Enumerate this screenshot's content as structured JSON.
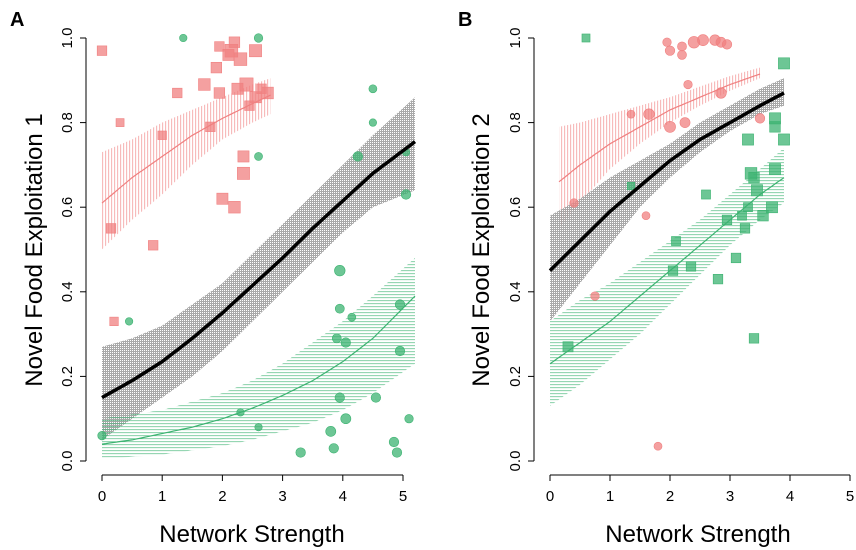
{
  "chart_data": [
    {
      "type": "scatter",
      "panel_label": "A",
      "xlabel": "Network Strength",
      "ylabel": "Novel Food Exploitation 1",
      "xlim": [
        0,
        5.2
      ],
      "ylim": [
        0,
        1
      ],
      "xticks": [
        "0",
        "1",
        "2",
        "3",
        "4",
        "5"
      ],
      "yticks": [
        "0.0",
        "0.2",
        "0.4",
        "0.6",
        "0.8",
        "1.0"
      ],
      "grid": false,
      "legend": "none",
      "colors": {
        "red": "#f08080",
        "green": "#3cb371",
        "black": "#000000",
        "ci_grey": "#808080"
      },
      "series": [
        {
          "color": "red",
          "curve": {
            "x": [
              0,
              0.5,
              1,
              1.5,
              2,
              2.5,
              2.8
            ],
            "y": [
              0.61,
              0.67,
              0.72,
              0.77,
              0.81,
              0.845,
              0.865
            ]
          },
          "ci_lower": [
            0.5,
            0.57,
            0.63,
            0.7,
            0.76,
            0.8,
            0.82
          ],
          "ci_upper": [
            0.73,
            0.76,
            0.8,
            0.83,
            0.86,
            0.89,
            0.905
          ],
          "points": [
            {
              "x": 0,
              "y": 0.97,
              "s": 1
            },
            {
              "x": 0.15,
              "y": 0.55,
              "s": 1
            },
            {
              "x": 0.2,
              "y": 0.33,
              "s": 0.8
            },
            {
              "x": 0.3,
              "y": 0.8,
              "s": 0.7
            },
            {
              "x": 0.85,
              "y": 0.51,
              "s": 1
            },
            {
              "x": 1.0,
              "y": 0.77,
              "s": 0.8
            },
            {
              "x": 1.25,
              "y": 0.87,
              "s": 1
            },
            {
              "x": 1.7,
              "y": 0.89,
              "s": 1.4
            },
            {
              "x": 1.8,
              "y": 0.79,
              "s": 1
            },
            {
              "x": 1.9,
              "y": 0.93,
              "s": 1.2
            },
            {
              "x": 1.95,
              "y": 0.87,
              "s": 1.2
            },
            {
              "x": 1.95,
              "y": 0.98,
              "s": 1
            },
            {
              "x": 2.0,
              "y": 0.62,
              "s": 1.3
            },
            {
              "x": 2.1,
              "y": 0.96,
              "s": 1.3
            },
            {
              "x": 2.15,
              "y": 0.97,
              "s": 1.6
            },
            {
              "x": 2.2,
              "y": 0.99,
              "s": 1.2
            },
            {
              "x": 2.2,
              "y": 0.6,
              "s": 1.4
            },
            {
              "x": 2.25,
              "y": 0.88,
              "s": 1.3
            },
            {
              "x": 2.3,
              "y": 0.95,
              "s": 1.6
            },
            {
              "x": 2.35,
              "y": 0.72,
              "s": 1.3
            },
            {
              "x": 2.35,
              "y": 0.68,
              "s": 1.5
            },
            {
              "x": 2.4,
              "y": 0.89,
              "s": 1.7
            },
            {
              "x": 2.45,
              "y": 0.84,
              "s": 1
            },
            {
              "x": 2.55,
              "y": 0.97,
              "s": 1.5
            },
            {
              "x": 2.55,
              "y": 0.86,
              "s": 1.3
            },
            {
              "x": 2.65,
              "y": 0.88,
              "s": 1
            },
            {
              "x": 2.75,
              "y": 0.87,
              "s": 1.4
            }
          ]
        },
        {
          "color": "black",
          "curve": {
            "x": [
              0,
              0.5,
              1,
              1.5,
              2,
              2.5,
              3,
              3.5,
              4,
              4.5,
              5.2
            ],
            "y": [
              0.15,
              0.19,
              0.235,
              0.29,
              0.35,
              0.415,
              0.48,
              0.55,
              0.615,
              0.68,
              0.755
            ]
          },
          "ci_lower": [
            0.05,
            0.1,
            0.15,
            0.2,
            0.26,
            0.33,
            0.4,
            0.47,
            0.54,
            0.6,
            0.64
          ],
          "ci_upper": [
            0.27,
            0.29,
            0.32,
            0.37,
            0.42,
            0.49,
            0.56,
            0.63,
            0.7,
            0.77,
            0.86
          ]
        },
        {
          "color": "green",
          "curve": {
            "x": [
              0,
              0.5,
              1,
              1.5,
              2,
              2.5,
              3,
              3.5,
              4,
              4.5,
              5.2
            ],
            "y": [
              0.04,
              0.05,
              0.065,
              0.08,
              0.1,
              0.125,
              0.155,
              0.19,
              0.235,
              0.29,
              0.39
            ]
          },
          "ci_lower": [
            0.005,
            0.01,
            0.015,
            0.025,
            0.035,
            0.05,
            0.07,
            0.09,
            0.12,
            0.16,
            0.23
          ],
          "ci_upper": [
            0.1,
            0.11,
            0.12,
            0.14,
            0.16,
            0.19,
            0.23,
            0.28,
            0.33,
            0.39,
            0.48
          ],
          "points": [
            {
              "x": 0,
              "y": 0.06,
              "s": 0.8
            },
            {
              "x": 0.45,
              "y": 0.33,
              "s": 0.6
            },
            {
              "x": 1.35,
              "y": 1.0,
              "s": 0.6
            },
            {
              "x": 2.3,
              "y": 0.115,
              "s": 0.6
            },
            {
              "x": 2.6,
              "y": 0.08,
              "s": 0.6
            },
            {
              "x": 2.6,
              "y": 1.0,
              "s": 0.8
            },
            {
              "x": 2.6,
              "y": 0.72,
              "s": 0.7
            },
            {
              "x": 3.3,
              "y": 0.02,
              "s": 1
            },
            {
              "x": 3.8,
              "y": 0.07,
              "s": 1.1
            },
            {
              "x": 3.85,
              "y": 0.03,
              "s": 1
            },
            {
              "x": 3.9,
              "y": 0.29,
              "s": 0.9
            },
            {
              "x": 3.95,
              "y": 0.15,
              "s": 1
            },
            {
              "x": 3.95,
              "y": 0.36,
              "s": 0.9
            },
            {
              "x": 3.95,
              "y": 0.45,
              "s": 1.2
            },
            {
              "x": 4.05,
              "y": 0.28,
              "s": 1
            },
            {
              "x": 4.05,
              "y": 0.1,
              "s": 1.1
            },
            {
              "x": 4.15,
              "y": 0.34,
              "s": 0.7
            },
            {
              "x": 4.25,
              "y": 0.72,
              "s": 1
            },
            {
              "x": 4.5,
              "y": 0.88,
              "s": 0.7
            },
            {
              "x": 4.5,
              "y": 0.8,
              "s": 0.6
            },
            {
              "x": 4.55,
              "y": 0.15,
              "s": 1
            },
            {
              "x": 4.85,
              "y": 0.045,
              "s": 1
            },
            {
              "x": 4.9,
              "y": 0.02,
              "s": 1
            },
            {
              "x": 4.95,
              "y": 0.37,
              "s": 1
            },
            {
              "x": 4.95,
              "y": 0.26,
              "s": 1
            },
            {
              "x": 5.05,
              "y": 0.63,
              "s": 1
            },
            {
              "x": 5.1,
              "y": 0.1,
              "s": 0.8
            },
            {
              "x": 5.05,
              "y": 0.73,
              "s": 0.6
            }
          ]
        }
      ]
    },
    {
      "type": "scatter",
      "panel_label": "B",
      "xlabel": "Network Strength",
      "ylabel": "Novel Food Exploitation 2",
      "xlim": [
        0,
        5
      ],
      "ylim": [
        0,
        1
      ],
      "xticks": [
        "0",
        "1",
        "2",
        "3",
        "4",
        "5"
      ],
      "yticks": [
        "0.0",
        "0.2",
        "0.4",
        "0.6",
        "0.8",
        "1.0"
      ],
      "grid": false,
      "legend": "none",
      "colors": {
        "red": "#f08080",
        "green": "#3cb371",
        "black": "#000000",
        "ci_grey": "#808080"
      },
      "series": [
        {
          "color": "red",
          "curve": {
            "x": [
              0.15,
              0.5,
              1,
              1.5,
              2,
              2.5,
              3,
              3.5
            ],
            "y": [
              0.66,
              0.7,
              0.75,
              0.79,
              0.83,
              0.86,
              0.89,
              0.915
            ]
          },
          "ci_lower": [
            0.55,
            0.61,
            0.69,
            0.75,
            0.8,
            0.84,
            0.875,
            0.905
          ],
          "ci_upper": [
            0.79,
            0.8,
            0.82,
            0.84,
            0.86,
            0.885,
            0.91,
            0.93
          ],
          "points": [
            {
              "x": 0.4,
              "y": 0.61,
              "s": 0.8
            },
            {
              "x": 0.75,
              "y": 0.39,
              "s": 0.8
            },
            {
              "x": 1.35,
              "y": 0.82,
              "s": 0.7
            },
            {
              "x": 1.6,
              "y": 0.58,
              "s": 0.7
            },
            {
              "x": 1.65,
              "y": 0.82,
              "s": 1.2
            },
            {
              "x": 1.8,
              "y": 0.035,
              "s": 0.7
            },
            {
              "x": 2.0,
              "y": 0.79,
              "s": 1.3
            },
            {
              "x": 1.95,
              "y": 0.99,
              "s": 0.8
            },
            {
              "x": 2.0,
              "y": 0.97,
              "s": 1
            },
            {
              "x": 2.2,
              "y": 0.98,
              "s": 0.9
            },
            {
              "x": 2.2,
              "y": 0.96,
              "s": 0.9
            },
            {
              "x": 2.25,
              "y": 0.8,
              "s": 1.1
            },
            {
              "x": 2.3,
              "y": 0.89,
              "s": 0.8
            },
            {
              "x": 2.4,
              "y": 0.99,
              "s": 1.4
            },
            {
              "x": 2.55,
              "y": 0.995,
              "s": 1.3
            },
            {
              "x": 2.75,
              "y": 0.995,
              "s": 1.2
            },
            {
              "x": 2.85,
              "y": 0.87,
              "s": 1.2
            },
            {
              "x": 2.85,
              "y": 0.99,
              "s": 1.1
            },
            {
              "x": 2.95,
              "y": 0.985,
              "s": 1
            },
            {
              "x": 3.5,
              "y": 0.81,
              "s": 1
            }
          ]
        },
        {
          "color": "black",
          "curve": {
            "x": [
              0,
              0.5,
              1,
              1.5,
              2,
              2.5,
              3,
              3.5,
              3.9
            ],
            "y": [
              0.45,
              0.52,
              0.59,
              0.65,
              0.71,
              0.76,
              0.8,
              0.84,
              0.87
            ]
          },
          "ci_lower": [
            0.33,
            0.42,
            0.51,
            0.6,
            0.67,
            0.73,
            0.78,
            0.82,
            0.84
          ],
          "ci_upper": [
            0.58,
            0.62,
            0.67,
            0.71,
            0.75,
            0.8,
            0.84,
            0.88,
            0.905
          ]
        },
        {
          "color": "green",
          "curve": {
            "x": [
              0,
              0.5,
              1,
              1.5,
              2,
              2.5,
              3,
              3.5,
              3.9
            ],
            "y": [
              0.23,
              0.28,
              0.33,
              0.39,
              0.45,
              0.51,
              0.57,
              0.63,
              0.67
            ]
          },
          "ci_lower": [
            0.13,
            0.18,
            0.24,
            0.3,
            0.37,
            0.44,
            0.51,
            0.57,
            0.61
          ],
          "ci_upper": [
            0.33,
            0.38,
            0.42,
            0.47,
            0.52,
            0.57,
            0.63,
            0.69,
            0.74
          ],
          "points": [
            {
              "x": 0.3,
              "y": 0.27,
              "s": 1.1
            },
            {
              "x": 0.6,
              "y": 1.0,
              "s": 0.7
            },
            {
              "x": 1.35,
              "y": 0.65,
              "s": 0.6
            },
            {
              "x": 2.05,
              "y": 0.45,
              "s": 1
            },
            {
              "x": 2.1,
              "y": 0.52,
              "s": 0.9
            },
            {
              "x": 2.35,
              "y": 0.46,
              "s": 1
            },
            {
              "x": 2.6,
              "y": 0.63,
              "s": 0.9
            },
            {
              "x": 2.8,
              "y": 0.43,
              "s": 1
            },
            {
              "x": 2.95,
              "y": 0.57,
              "s": 1
            },
            {
              "x": 3.1,
              "y": 0.48,
              "s": 1
            },
            {
              "x": 3.2,
              "y": 0.58,
              "s": 0.9
            },
            {
              "x": 3.25,
              "y": 0.55,
              "s": 1
            },
            {
              "x": 3.3,
              "y": 0.76,
              "s": 1.3
            },
            {
              "x": 3.3,
              "y": 0.6,
              "s": 0.9
            },
            {
              "x": 3.35,
              "y": 0.68,
              "s": 1.4
            },
            {
              "x": 3.4,
              "y": 0.67,
              "s": 1.2
            },
            {
              "x": 3.4,
              "y": 0.29,
              "s": 1
            },
            {
              "x": 3.45,
              "y": 0.64,
              "s": 1.3
            },
            {
              "x": 3.55,
              "y": 0.58,
              "s": 1.2
            },
            {
              "x": 3.7,
              "y": 0.6,
              "s": 1.3
            },
            {
              "x": 3.75,
              "y": 0.69,
              "s": 1.3
            },
            {
              "x": 3.75,
              "y": 0.79,
              "s": 1.2
            },
            {
              "x": 3.75,
              "y": 0.81,
              "s": 1.3
            },
            {
              "x": 3.9,
              "y": 0.76,
              "s": 1.3
            },
            {
              "x": 3.9,
              "y": 0.94,
              "s": 1.3
            }
          ]
        }
      ]
    }
  ]
}
